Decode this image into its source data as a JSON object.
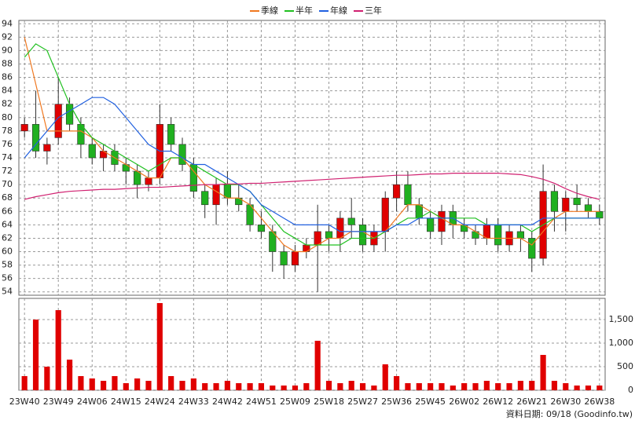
{
  "chart_data": {
    "type": "candlestick",
    "legend": "top",
    "grid": true,
    "categories": [
      "23W40",
      null,
      null,
      "23W49",
      null,
      null,
      "24W06",
      null,
      null,
      "24W15",
      null,
      null,
      "24W24",
      null,
      null,
      "24W33",
      null,
      null,
      "24W42",
      null,
      null,
      "24W51",
      null,
      null,
      "25W09",
      null,
      null,
      "25W18",
      null,
      null,
      "25W27",
      null,
      null,
      "25W36",
      null,
      null,
      "25W45",
      null,
      null,
      "26W02",
      null,
      null,
      "26W12",
      null,
      null,
      "26W21",
      null,
      null,
      "26W30",
      null,
      null,
      "26W38"
    ],
    "open": [
      78,
      79,
      75,
      77,
      82,
      79,
      76,
      74,
      75,
      73,
      72,
      70,
      71,
      79,
      76,
      73,
      69,
      67,
      70,
      68,
      67,
      64,
      63,
      60,
      58,
      60,
      61,
      63,
      62,
      65,
      64,
      61,
      63,
      68,
      70,
      67,
      65,
      63,
      66,
      64,
      63,
      62,
      64,
      61,
      63,
      62,
      59,
      69,
      66,
      68,
      67,
      66
    ],
    "high": [
      80,
      84,
      77,
      86,
      83,
      80,
      77,
      76,
      76,
      74,
      73,
      72,
      82,
      80,
      77,
      74,
      70,
      71,
      72,
      70,
      68,
      66,
      64,
      61,
      61,
      62,
      67,
      64,
      66,
      68,
      65,
      64,
      69,
      72,
      72,
      68,
      66,
      67,
      67,
      65,
      64,
      65,
      65,
      64,
      64,
      63,
      73,
      70,
      69,
      70,
      68,
      67
    ],
    "low": [
      77,
      74,
      73,
      76,
      78,
      74,
      73,
      72,
      72,
      70,
      68,
      69,
      70,
      75,
      72,
      68,
      65,
      64,
      67,
      66,
      63,
      62,
      57,
      56,
      57,
      59,
      54,
      60,
      60,
      62,
      60,
      60,
      60,
      66,
      66,
      64,
      62,
      61,
      62,
      62,
      61,
      61,
      60,
      60,
      60,
      57,
      58,
      63,
      63,
      66,
      65,
      64
    ],
    "close": [
      79,
      75,
      76,
      82,
      79,
      76,
      74,
      75,
      73,
      72,
      70,
      71,
      79,
      76,
      73,
      69,
      67,
      70,
      68,
      67,
      64,
      63,
      60,
      58,
      60,
      61,
      63,
      62,
      65,
      64,
      61,
      63,
      68,
      70,
      67,
      65,
      63,
      66,
      64,
      63,
      62,
      64,
      61,
      63,
      62,
      59,
      69,
      66,
      68,
      67,
      66,
      65
    ],
    "up_color": "#e00000",
    "down_color": "#20b020",
    "series": [
      {
        "name": "季線",
        "color": "#f07820",
        "values": [
          92,
          85,
          78,
          78,
          78,
          78,
          77,
          75,
          74,
          73,
          72,
          71,
          71,
          74,
          74,
          72,
          70,
          69,
          68,
          68,
          67,
          65,
          63,
          61,
          60,
          60,
          61,
          62,
          62,
          63,
          63,
          62,
          63,
          65,
          67,
          67,
          66,
          65,
          64,
          64,
          63,
          62,
          62,
          62,
          62,
          61,
          63,
          65,
          66,
          66,
          66,
          66
        ]
      },
      {
        "name": "半年",
        "color": "#20c020",
        "values": [
          89,
          91,
          90,
          86,
          82,
          79,
          77,
          76,
          75,
          74,
          73,
          72,
          73,
          74,
          74,
          73,
          72,
          71,
          70,
          70,
          69,
          67,
          65,
          63,
          62,
          61,
          61,
          61,
          61,
          62,
          62,
          62,
          63,
          64,
          65,
          65,
          66,
          65,
          65,
          65,
          65,
          64,
          64,
          64,
          64,
          63,
          64,
          65,
          65,
          65,
          65,
          65
        ]
      },
      {
        "name": "年線",
        "color": "#2060e0",
        "values": [
          74,
          76,
          78,
          80,
          81,
          82,
          83,
          83,
          82,
          80,
          78,
          76,
          75,
          75,
          74,
          73,
          73,
          72,
          71,
          70,
          69,
          67,
          66,
          65,
          64,
          64,
          64,
          64,
          63,
          63,
          63,
          63,
          63,
          64,
          64,
          65,
          65,
          65,
          65,
          64,
          64,
          64,
          64,
          64,
          64,
          64,
          65,
          65,
          65,
          65,
          65,
          65
        ]
      },
      {
        "name": "三年",
        "color": "#d02070",
        "values": [
          67.8,
          68.2,
          68.5,
          68.8,
          69,
          69.1,
          69.2,
          69.3,
          69.3,
          69.4,
          69.5,
          69.6,
          69.6,
          69.7,
          69.8,
          69.9,
          70,
          70,
          70.1,
          70.1,
          70.2,
          70.2,
          70.3,
          70.4,
          70.5,
          70.6,
          70.7,
          70.8,
          70.9,
          71,
          71.1,
          71.2,
          71.3,
          71.4,
          71.4,
          71.5,
          71.6,
          71.6,
          71.7,
          71.7,
          71.7,
          71.7,
          71.7,
          71.6,
          71.5,
          71.2,
          70.8,
          70.2,
          69.4,
          68.7,
          68.2,
          67.8
        ]
      }
    ],
    "ylim": [
      53.5,
      94.5
    ],
    "yticks": [
      54,
      56,
      58,
      60,
      62,
      64,
      66,
      68,
      70,
      72,
      74,
      76,
      78,
      80,
      82,
      84,
      86,
      88,
      90,
      92,
      94
    ],
    "volume": {
      "color": "#e00000",
      "ylim": [
        0,
        1950
      ],
      "yticks": [
        0,
        500,
        {
          "value": 1000,
          "label": "1,000"
        },
        {
          "value": 1500,
          "label": "1,500"
        }
      ],
      "values": [
        300,
        1500,
        500,
        1700,
        650,
        300,
        250,
        200,
        300,
        150,
        250,
        200,
        1850,
        300,
        200,
        250,
        150,
        150,
        200,
        150,
        150,
        150,
        100,
        100,
        100,
        150,
        1050,
        200,
        150,
        200,
        150,
        100,
        550,
        300,
        150,
        150,
        150,
        150,
        100,
        150,
        150,
        200,
        150,
        150,
        200,
        200,
        750,
        200,
        150,
        100,
        100,
        100
      ]
    },
    "footnote": "資料日期: 09/18 (Goodinfo.tw)"
  }
}
